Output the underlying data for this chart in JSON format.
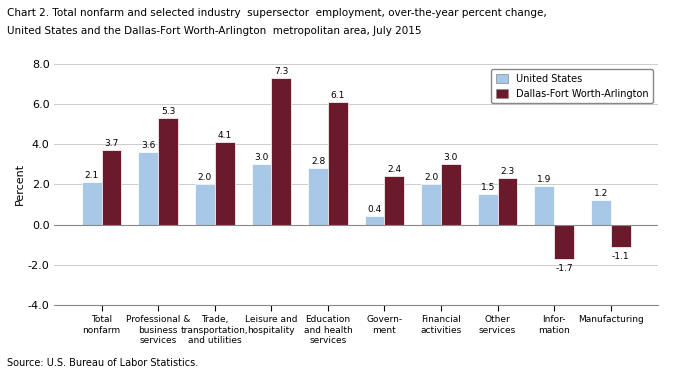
{
  "title_line1": "Chart 2. Total nonfarm and selected industry  supersector  employment, over-the-year percent change,",
  "title_line2": "United States and the Dallas-Fort Worth-Arlington  metropolitan area, July 2015",
  "ylabel": "Percent",
  "categories": [
    "Total\nnonfarm",
    "Professional &\nbusiness\nservices",
    "Trade,\ntransportation,\nand utilities",
    "Leisure and\nhospitality",
    "Education\nand health\nservices",
    "Govern-\nment",
    "Financial\nactivities",
    "Other\nservices",
    "Infor-\nmation",
    "Manufacturing"
  ],
  "us_values": [
    2.1,
    3.6,
    2.0,
    3.0,
    2.8,
    0.4,
    2.0,
    1.5,
    1.9,
    1.2
  ],
  "dfw_values": [
    3.7,
    5.3,
    4.1,
    7.3,
    6.1,
    2.4,
    3.0,
    2.3,
    -1.7,
    -1.1
  ],
  "us_color": "#a8c8e8",
  "dfw_color": "#6b1a2b",
  "ylim": [
    -4.0,
    8.0
  ],
  "yticks": [
    -4.0,
    -2.0,
    0.0,
    2.0,
    4.0,
    6.0,
    8.0
  ],
  "legend_us": "United States",
  "legend_dfw": "Dallas-Fort Worth-Arlington",
  "source": "Source: U.S. Bureau of Labor Statistics.",
  "bar_width": 0.35
}
